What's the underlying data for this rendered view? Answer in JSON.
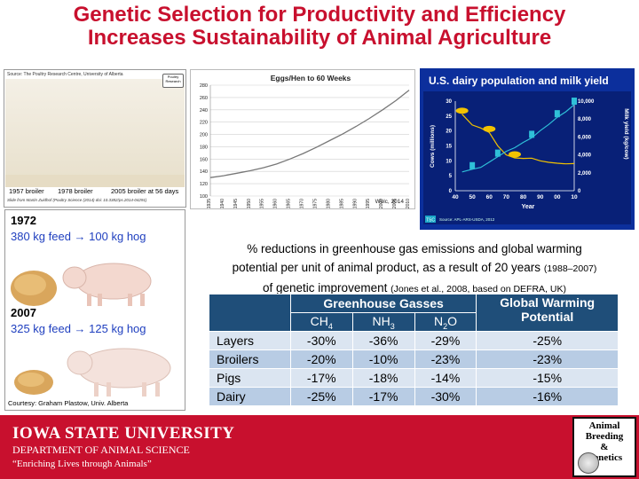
{
  "title": {
    "line1": "Genetic Selection for Productivity and Efficiency",
    "line2": "Increases Sustainability of Animal Agriculture"
  },
  "poultry": {
    "source": "Source: The Poultry Research Centre, University of Alberta",
    "label_1957": "1957 broiler",
    "label_1978": "1978 broiler",
    "label_2005": "2005 broiler at 56 days",
    "slide_from": "Slide from Martin Zuidhof (Poultry Science (2014) doi: 10.3382/ps.2014-04291)",
    "logo_text": "Poultry Research"
  },
  "eggs_chart": {
    "credit": "Wolc, 2014"
  },
  "dairy": {
    "title": "U.S. dairy population and milk yield",
    "source": "Source: APL-ARS-USDA, 2012",
    "left_label": "Cows (millions)",
    "right_label": "Milk yield (kg/cow)",
    "x_label": "Year",
    "tsc": "TSC"
  },
  "chart_data": [
    {
      "type": "line",
      "title": "Eggs/Hen to 60 Weeks",
      "x": [
        1935,
        1940,
        1945,
        1950,
        1955,
        1960,
        1965,
        1970,
        1975,
        1980,
        1985,
        1990,
        1995,
        2000,
        2005,
        2010
      ],
      "series": [
        {
          "values": [
            130,
            133,
            137,
            141,
            146,
            152,
            160,
            169,
            179,
            190,
            201,
            213,
            226,
            240,
            255,
            272
          ]
        }
      ],
      "xlim": [
        1935,
        2010
      ],
      "ylim": [
        100,
        280
      ],
      "yticks": [
        100,
        120,
        140,
        160,
        180,
        200,
        220,
        240,
        260,
        280
      ],
      "grid": true
    },
    {
      "type": "line",
      "title": "U.S. dairy population and milk yield",
      "xlabel": "Year",
      "x_tick_labels": [
        "40",
        "50",
        "60",
        "70",
        "80",
        "90",
        "00",
        "10"
      ],
      "x": [
        1944,
        1950,
        1955,
        1960,
        1965,
        1970,
        1975,
        1980,
        1985,
        1990,
        1995,
        2000,
        2005,
        2010
      ],
      "series": [
        {
          "name": "Cows (millions)",
          "axis": "left",
          "values": [
            25.6,
            22,
            21,
            19.5,
            15,
            12,
            11,
            10.8,
            10.9,
            10,
            9.5,
            9.2,
            9,
            9.1
          ]
        },
        {
          "name": "Milk yield (kg/cow)",
          "axis": "right",
          "values": [
            2100,
            2400,
            2600,
            3200,
            3800,
            4400,
            4800,
            5400,
            5900,
            6700,
            7400,
            8200,
            8800,
            9600
          ]
        }
      ],
      "ylim_left": [
        0,
        30
      ],
      "yticks_left": [
        0,
        5,
        10,
        15,
        20,
        25,
        30
      ],
      "ylim_right": [
        0,
        10000
      ],
      "yticks_right": [
        "0",
        "2,000",
        "4,000",
        "6,000",
        "8,000",
        "10,000"
      ]
    }
  ],
  "hogs": {
    "year_1972": "1972",
    "feed_1972": "380 kg feed → 100 kg hog",
    "year_2007": "2007",
    "feed_2007": "325 kg feed → 125 kg hog",
    "courtesy": "Courtesy: Graham Plastow, Univ. Alberta"
  },
  "ghg": {
    "line1": "% reductions in greenhouse gas emissions and global warming",
    "line2": "potential per unit of animal product, as a result of 20 years",
    "line2_small": "(1988–2007)",
    "line3": "of genetic improvement",
    "line3_small": "(Jones et al., 2008, based on DEFRA, UK)"
  },
  "table": {
    "header_group": "Greenhouse Gasses",
    "header_gwp": "Global Warming Potential",
    "col_ch4": "CH",
    "col_ch4_sub": "4",
    "col_nh3": "NH",
    "col_nh3_sub": "3",
    "col_n2o_a": "N",
    "col_n2o_sub": "2",
    "col_n2o_b": "O",
    "rows": [
      {
        "label": "Layers",
        "ch4": "-30%",
        "nh3": "-36%",
        "n2o": "-29%",
        "gwp": "-25%"
      },
      {
        "label": "Broilers",
        "ch4": "-20%",
        "nh3": "-10%",
        "n2o": "-23%",
        "gwp": "-23%"
      },
      {
        "label": "Pigs",
        "ch4": "-17%",
        "nh3": "-18%",
        "n2o": "-14%",
        "gwp": "-15%"
      },
      {
        "label": "Dairy",
        "ch4": "-25%",
        "nh3": "-17%",
        "n2o": "-30%",
        "gwp": "-16%"
      }
    ]
  },
  "footer": {
    "university": "IOWA STATE UNIVERSITY",
    "department": "DEPARTMENT OF ANIMAL SCIENCE",
    "motto": "“Enriching Lives through Animals”"
  },
  "abg_logo": {
    "line1": "Animal",
    "line2": "Breeding",
    "line3": "&",
    "line4": "Genetics"
  },
  "colors": {
    "title_red": "#c8102e",
    "footer_red": "#c8102e",
    "dairy_bg": "#0c2f9c",
    "table_header": "#1f4e79",
    "feed_blue": "#1f3fbf"
  }
}
